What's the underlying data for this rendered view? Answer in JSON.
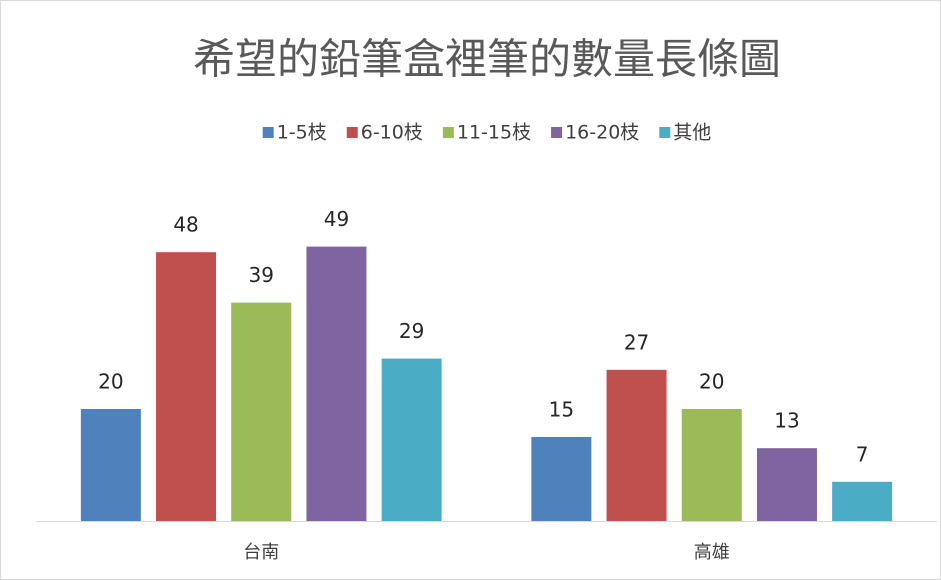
{
  "chart_data": {
    "type": "bar",
    "title": "希望的鉛筆盒裡筆的數量長條圖",
    "categories": [
      "台南",
      "高雄"
    ],
    "series": [
      {
        "name": "1-5枝",
        "color": "#4f81bd",
        "values": [
          20,
          15
        ]
      },
      {
        "name": "6-10枝",
        "color": "#c0504d",
        "values": [
          48,
          27
        ]
      },
      {
        "name": "11-15枝",
        "color": "#9bbb59",
        "values": [
          39,
          20
        ]
      },
      {
        "name": "16-20枝",
        "color": "#8064a2",
        "values": [
          49,
          13
        ]
      },
      {
        "name": "其他",
        "color": "#4bacc6",
        "values": [
          29,
          7
        ]
      }
    ],
    "legend": "top"
  }
}
